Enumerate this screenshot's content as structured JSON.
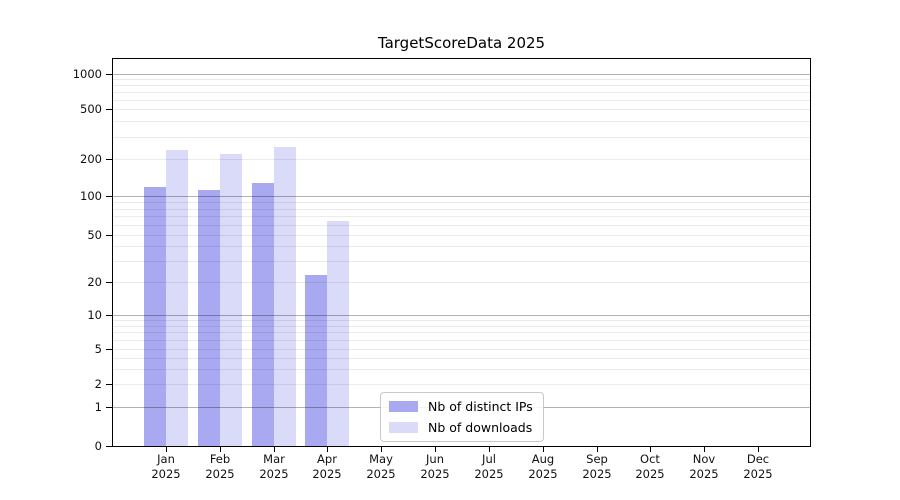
{
  "title": "TargetScoreData 2025",
  "chart_data": {
    "type": "bar",
    "title": "TargetScoreData 2025",
    "yscale": "symlog",
    "grid": true,
    "legend_position": "lower center inside plot",
    "background_color": "#ffffff",
    "categories": [
      "Jan",
      "Feb",
      "Mar",
      "Apr",
      "May",
      "Jun",
      "Jul",
      "Aug",
      "Sep",
      "Oct",
      "Nov",
      "Dec"
    ],
    "category_year": "2025",
    "yticks": [
      0,
      1,
      2,
      5,
      10,
      20,
      50,
      100,
      200,
      500,
      1000
    ],
    "ylim": [
      0,
      1300
    ],
    "series": [
      {
        "name": "Nb of distinct IPs",
        "color": "#a9a9f1",
        "values": [
          118,
          112,
          128,
          23,
          0,
          0,
          0,
          0,
          0,
          0,
          0,
          0
        ]
      },
      {
        "name": "Nb of downloads",
        "color": "#dadaf9",
        "values": [
          236,
          219,
          249,
          64,
          0,
          0,
          0,
          0,
          0,
          0,
          0,
          0
        ]
      }
    ]
  }
}
